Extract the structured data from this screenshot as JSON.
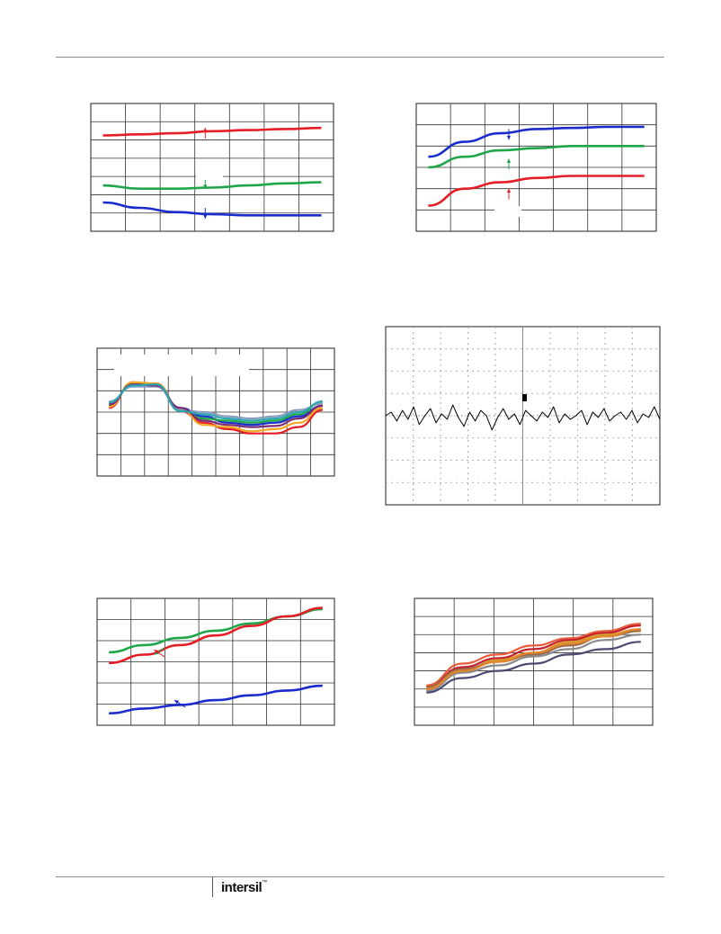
{
  "footer": {
    "brand": "intersil",
    "brand_mark": "™"
  },
  "chart_data": [
    {
      "type": "line",
      "grid": "on",
      "x_divisions": 7,
      "y_divisions": 7,
      "series": [
        {
          "color": "#e41e26",
          "values": [
            0.3,
            0.29,
            0.28,
            0.26,
            0.25,
            0.24,
            0.23
          ]
        },
        {
          "color": "#1fa64a",
          "values": [
            0.77,
            0.8,
            0.8,
            0.79,
            0.77,
            0.75,
            0.74
          ]
        },
        {
          "color": "#1a2ccc",
          "values": [
            0.93,
            0.98,
            1.02,
            1.04,
            1.05,
            1.05,
            1.05
          ]
        }
      ],
      "annotations": [
        {
          "color": "#e41e26",
          "x": 3.3,
          "y": 0.33,
          "direction": "up"
        },
        {
          "color": "#1fa64a",
          "x": 3.3,
          "y": 0.7,
          "direction": "down"
        },
        {
          "color": "#1a2ccc",
          "x": 3.3,
          "y": 0.98,
          "direction": "down"
        }
      ]
    },
    {
      "type": "line",
      "grid": "on",
      "x_divisions": 7,
      "y_divisions": 6,
      "series": [
        {
          "color": "#1a2ccc",
          "values": [
            0.25,
            0.18,
            0.14,
            0.12,
            0.115,
            0.11,
            0.11
          ]
        },
        {
          "color": "#1fa64a",
          "values": [
            0.3,
            0.25,
            0.22,
            0.21,
            0.2,
            0.2,
            0.2
          ]
        },
        {
          "color": "#e41e26",
          "values": [
            0.48,
            0.4,
            0.37,
            0.35,
            0.34,
            0.34,
            0.34
          ]
        }
      ],
      "annotations": [
        {
          "color": "#1a2ccc",
          "x": 2.7,
          "y": 0.12,
          "direction": "down"
        },
        {
          "color": "#1fa64a",
          "x": 2.7,
          "y": 0.31,
          "direction": "up"
        },
        {
          "color": "#e41e26",
          "x": 2.7,
          "y": 0.45,
          "direction": "up"
        }
      ]
    },
    {
      "type": "line",
      "grid": "on",
      "x_divisions": 10,
      "y_divisions": 6,
      "series": [
        {
          "color": "#e41e26",
          "values": [
            3.2,
            4.4,
            4.3,
            3.05,
            2.5,
            2.2,
            2.0,
            2.0,
            2.3,
            3.1
          ]
        },
        {
          "color": "#1a2ccc",
          "values": [
            3.4,
            4.3,
            4.25,
            3.2,
            2.8,
            2.5,
            2.4,
            2.5,
            2.8,
            3.3
          ]
        },
        {
          "color": "#1fa64a",
          "values": [
            3.3,
            4.35,
            4.3,
            3.1,
            2.7,
            2.6,
            2.5,
            2.6,
            2.9,
            3.5
          ]
        },
        {
          "color": "#f5a623",
          "values": [
            3.25,
            4.4,
            4.35,
            3.15,
            2.4,
            2.3,
            2.1,
            2.2,
            2.5,
            3.2
          ]
        },
        {
          "color": "#8a9bbf",
          "values": [
            3.5,
            4.2,
            4.2,
            3.1,
            3.0,
            2.8,
            2.7,
            2.8,
            3.1,
            3.4
          ]
        },
        {
          "color": "#7a2a70",
          "values": [
            3.35,
            4.3,
            4.25,
            3.2,
            2.6,
            2.4,
            2.3,
            2.35,
            2.7,
            3.3
          ]
        },
        {
          "color": "#2aa6b0",
          "values": [
            3.45,
            4.25,
            4.3,
            3.05,
            2.9,
            2.7,
            2.6,
            2.7,
            3.0,
            3.5
          ]
        }
      ]
    },
    {
      "type": "line",
      "grid": "on",
      "x_divisions": 10,
      "y_divisions": 8,
      "series": [
        {
          "color": "#000000",
          "values": [
            0.5,
            0.48,
            0.53,
            0.47,
            0.52,
            0.45,
            0.55,
            0.5,
            0.46,
            0.54,
            0.49,
            0.52,
            0.44,
            0.51,
            0.56,
            0.48,
            0.53,
            0.47,
            0.5,
            0.58,
            0.51,
            0.46,
            0.52,
            0.49,
            0.55,
            0.47,
            0.5,
            0.53,
            0.48,
            0.51,
            0.45,
            0.54,
            0.49,
            0.52,
            0.5,
            0.47,
            0.55,
            0.48,
            0.51,
            0.46,
            0.53,
            0.5,
            0.48,
            0.52,
            0.47,
            0.54,
            0.49,
            0.51,
            0.45,
            0.52
          ]
        }
      ]
    },
    {
      "type": "line",
      "grid": "on",
      "x_divisions": 7,
      "y_divisions": 6,
      "series": [
        {
          "color": "#1fa64a",
          "values": [
            6.1,
            6.7,
            7.3,
            7.9,
            8.5,
            9.1,
            9.7
          ]
        },
        {
          "color": "#e41e26",
          "values": [
            5.2,
            5.9,
            6.7,
            7.5,
            8.3,
            9.1,
            9.8
          ]
        },
        {
          "color": "#1a2ccc",
          "values": [
            1.0,
            1.4,
            1.7,
            2.1,
            2.5,
            2.9,
            3.3
          ]
        }
      ],
      "annotations": [
        {
          "color": "#1fa64a",
          "x": 2.0,
          "y": 6.5,
          "direction": "down-left"
        },
        {
          "color": "#e41e26",
          "x": 2.0,
          "y": 5.7,
          "direction": "up-left"
        },
        {
          "color": "#1a2ccc",
          "x": 2.6,
          "y": 1.5,
          "direction": "up-left"
        }
      ]
    },
    {
      "type": "line",
      "grid": "on",
      "x_divisions": 6,
      "y_divisions": 7,
      "series": [
        {
          "color": "#e85c3a",
          "values": [
            2.2,
            3.4,
            3.9,
            4.4,
            4.8,
            5.2,
            5.6
          ]
        },
        {
          "color": "#c21f2f",
          "values": [
            2.1,
            3.2,
            3.7,
            4.2,
            4.7,
            5.1,
            5.5
          ]
        },
        {
          "color": "#d69b2e",
          "values": [
            2.0,
            3.0,
            3.6,
            4.0,
            4.6,
            5.0,
            5.3
          ]
        },
        {
          "color": "#9b6b4a",
          "values": [
            2.1,
            3.1,
            3.5,
            3.9,
            4.4,
            4.9,
            5.2
          ]
        },
        {
          "color": "#8a8a8a",
          "values": [
            1.9,
            2.9,
            3.3,
            3.8,
            4.2,
            4.7,
            5.0
          ]
        },
        {
          "color": "#4a4a72",
          "values": [
            1.8,
            2.6,
            3.0,
            3.4,
            3.9,
            4.2,
            4.6
          ]
        },
        {
          "color": "#e4862b",
          "values": [
            2.0,
            3.0,
            3.5,
            4.0,
            4.5,
            4.9,
            5.3
          ]
        }
      ]
    }
  ]
}
